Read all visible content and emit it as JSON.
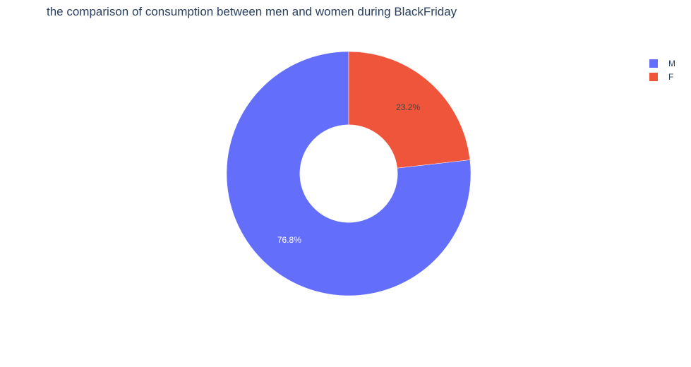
{
  "chart_data": {
    "type": "pie",
    "hole": 0.4,
    "title": "the comparison of consumption between men and women during BlackFriday",
    "categories": [
      "M",
      "F"
    ],
    "values": [
      76.8,
      23.2
    ],
    "labels_text": [
      "76.8%",
      "23.2%"
    ],
    "colors": [
      "#636efa",
      "#ef553b"
    ],
    "label_colors": [
      "#ffffff",
      "#444444"
    ],
    "legend_position": "top-right",
    "direction": "counterclockwise",
    "start": "top"
  }
}
